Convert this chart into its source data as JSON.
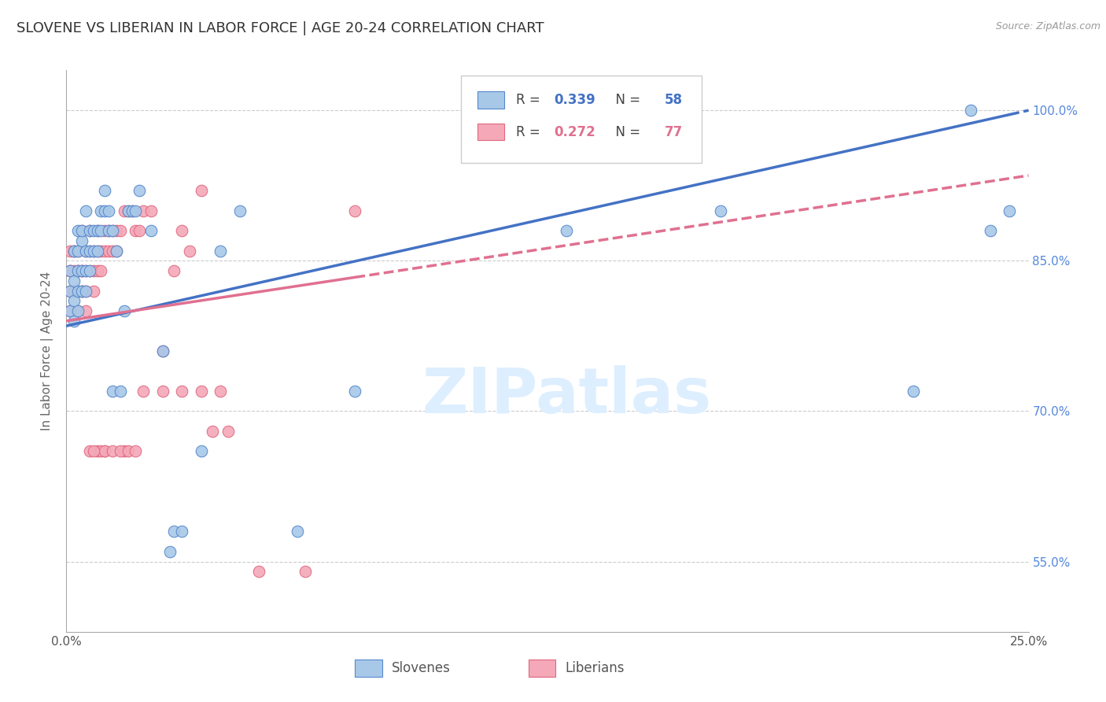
{
  "title": "SLOVENE VS LIBERIAN IN LABOR FORCE | AGE 20-24 CORRELATION CHART",
  "source_text": "Source: ZipAtlas.com",
  "ylabel": "In Labor Force | Age 20-24",
  "xlim": [
    0.0,
    0.25
  ],
  "ylim": [
    0.48,
    1.04
  ],
  "xtick_positions": [
    0.0,
    0.05,
    0.1,
    0.15,
    0.2,
    0.25
  ],
  "xticklabels": [
    "0.0%",
    "",
    "",
    "",
    "",
    "25.0%"
  ],
  "ytick_positions": [
    0.55,
    0.7,
    0.85,
    1.0
  ],
  "ytick_labels_right": [
    "55.0%",
    "70.0%",
    "85.0%",
    "100.0%"
  ],
  "slovene_color": "#a8c8e8",
  "liberian_color": "#f4a8b8",
  "slovene_edge_color": "#5588cc",
  "liberian_edge_color": "#e06880",
  "slovene_line_color": "#4472c4",
  "liberian_line_color": "#e07090",
  "R_slovene": 0.339,
  "N_slovene": 58,
  "R_liberian": 0.272,
  "N_liberian": 77,
  "background_color": "#ffffff",
  "grid_color": "#cccccc",
  "title_color": "#333333",
  "axis_label_color": "#666666",
  "right_tick_color": "#5588dd",
  "watermark_color": "#ddeeff",
  "slovene_x": [
    0.001,
    0.001,
    0.001,
    0.002,
    0.002,
    0.002,
    0.002,
    0.003,
    0.003,
    0.003,
    0.003,
    0.003,
    0.004,
    0.004,
    0.004,
    0.004,
    0.005,
    0.005,
    0.005,
    0.005,
    0.006,
    0.006,
    0.006,
    0.007,
    0.007,
    0.008,
    0.008,
    0.009,
    0.009,
    0.01,
    0.01,
    0.011,
    0.011,
    0.012,
    0.012,
    0.013,
    0.014,
    0.015,
    0.016,
    0.017,
    0.018,
    0.019,
    0.022,
    0.025,
    0.027,
    0.028,
    0.03,
    0.035,
    0.04,
    0.045,
    0.06,
    0.075,
    0.13,
    0.17,
    0.22,
    0.235,
    0.24,
    0.245
  ],
  "slovene_y": [
    0.82,
    0.8,
    0.84,
    0.83,
    0.86,
    0.81,
    0.79,
    0.84,
    0.82,
    0.8,
    0.88,
    0.86,
    0.87,
    0.84,
    0.82,
    0.88,
    0.9,
    0.86,
    0.84,
    0.82,
    0.88,
    0.86,
    0.84,
    0.88,
    0.86,
    0.88,
    0.86,
    0.9,
    0.88,
    0.92,
    0.9,
    0.9,
    0.88,
    0.88,
    0.72,
    0.86,
    0.72,
    0.8,
    0.9,
    0.9,
    0.9,
    0.92,
    0.88,
    0.76,
    0.56,
    0.58,
    0.58,
    0.66,
    0.86,
    0.9,
    0.58,
    0.72,
    0.88,
    0.9,
    0.72,
    1.0,
    0.88,
    0.9
  ],
  "liberian_x": [
    0.001,
    0.001,
    0.001,
    0.001,
    0.001,
    0.002,
    0.002,
    0.002,
    0.002,
    0.002,
    0.003,
    0.003,
    0.003,
    0.003,
    0.003,
    0.004,
    0.004,
    0.004,
    0.004,
    0.004,
    0.005,
    0.005,
    0.005,
    0.005,
    0.006,
    0.006,
    0.006,
    0.007,
    0.007,
    0.007,
    0.008,
    0.008,
    0.008,
    0.009,
    0.009,
    0.01,
    0.01,
    0.011,
    0.011,
    0.012,
    0.012,
    0.013,
    0.013,
    0.014,
    0.015,
    0.016,
    0.017,
    0.018,
    0.019,
    0.02,
    0.022,
    0.025,
    0.028,
    0.03,
    0.032,
    0.035,
    0.038,
    0.042,
    0.05,
    0.062,
    0.075,
    0.02,
    0.025,
    0.03,
    0.035,
    0.04,
    0.01,
    0.015,
    0.008,
    0.009,
    0.01,
    0.012,
    0.014,
    0.016,
    0.018,
    0.006,
    0.007
  ],
  "liberian_y": [
    0.82,
    0.84,
    0.8,
    0.86,
    0.84,
    0.82,
    0.86,
    0.82,
    0.84,
    0.86,
    0.82,
    0.84,
    0.8,
    0.84,
    0.86,
    0.84,
    0.82,
    0.88,
    0.82,
    0.84,
    0.86,
    0.82,
    0.84,
    0.8,
    0.84,
    0.88,
    0.86,
    0.84,
    0.86,
    0.82,
    0.88,
    0.86,
    0.84,
    0.86,
    0.84,
    0.88,
    0.86,
    0.88,
    0.86,
    0.88,
    0.86,
    0.88,
    0.86,
    0.88,
    0.9,
    0.9,
    0.9,
    0.88,
    0.88,
    0.9,
    0.9,
    0.76,
    0.84,
    0.88,
    0.86,
    0.92,
    0.68,
    0.68,
    0.54,
    0.54,
    0.9,
    0.72,
    0.72,
    0.72,
    0.72,
    0.72,
    0.66,
    0.66,
    0.66,
    0.66,
    0.66,
    0.66,
    0.66,
    0.66,
    0.66,
    0.66,
    0.66
  ]
}
